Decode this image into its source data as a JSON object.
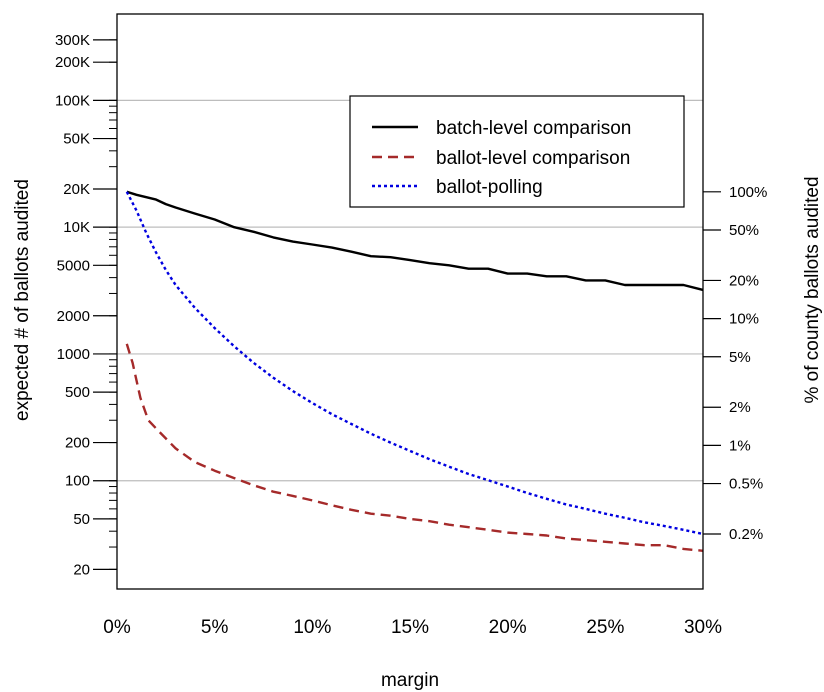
{
  "chart_data": {
    "type": "line",
    "xlabel": "margin",
    "ylabel": "expected # of ballots audited",
    "y2label": "% of county ballots audited",
    "x_scale": "linear",
    "y_scale": "log",
    "xlim": [
      0,
      30
    ],
    "ylim": [
      14,
      480000
    ],
    "grid": "horizontal at 100, 1000, 10K, 100K",
    "legend_position": "top-right",
    "x_ticks": [
      {
        "value": 0,
        "label": "0%"
      },
      {
        "value": 5,
        "label": "5%"
      },
      {
        "value": 10,
        "label": "10%"
      },
      {
        "value": 15,
        "label": "15%"
      },
      {
        "value": 20,
        "label": "20%"
      },
      {
        "value": 25,
        "label": "25%"
      },
      {
        "value": 30,
        "label": "30%"
      }
    ],
    "y_ticks": [
      {
        "value": 20,
        "label": "20"
      },
      {
        "value": 50,
        "label": "50"
      },
      {
        "value": 100,
        "label": "100"
      },
      {
        "value": 200,
        "label": "200"
      },
      {
        "value": 500,
        "label": "500"
      },
      {
        "value": 1000,
        "label": "1000"
      },
      {
        "value": 2000,
        "label": "2000"
      },
      {
        "value": 5000,
        "label": "5000"
      },
      {
        "value": 10000,
        "label": "10K"
      },
      {
        "value": 20000,
        "label": "20K"
      },
      {
        "value": 50000,
        "label": "50K"
      },
      {
        "value": 100000,
        "label": "100K"
      },
      {
        "value": 200000,
        "label": "200K"
      },
      {
        "value": 300000,
        "label": "300K"
      }
    ],
    "y_minor_ticks": [
      20,
      30,
      40,
      50,
      60,
      70,
      80,
      90,
      100,
      200,
      300,
      400,
      500,
      600,
      700,
      800,
      900,
      1000,
      2000,
      3000,
      4000,
      5000,
      6000,
      7000,
      8000,
      9000,
      10000,
      20000,
      30000,
      40000,
      50000,
      60000,
      70000,
      80000,
      90000,
      100000,
      200000,
      300000
    ],
    "y_grid": [
      100,
      1000,
      10000,
      100000
    ],
    "y2_ticks": [
      {
        "value": 19000,
        "label": "100%"
      },
      {
        "value": 9500,
        "label": "50%"
      },
      {
        "value": 3800,
        "label": "20%"
      },
      {
        "value": 1900,
        "label": "10%"
      },
      {
        "value": 950,
        "label": "5%"
      },
      {
        "value": 380,
        "label": "2%"
      },
      {
        "value": 190,
        "label": "1%"
      },
      {
        "value": 95,
        "label": "0.5%"
      },
      {
        "value": 38,
        "label": "0.2%"
      }
    ],
    "series": [
      {
        "name": "batch-level comparison",
        "color": "#000000",
        "dash": "solid",
        "x": [
          0.5,
          1,
          2,
          2.5,
          3,
          4,
          5,
          6,
          7,
          8,
          9,
          10,
          11,
          12,
          13,
          14,
          15,
          16,
          17,
          18,
          19,
          20,
          21,
          22,
          23,
          24,
          25,
          26,
          27,
          28,
          29,
          30
        ],
        "y": [
          19000,
          18000,
          16500,
          15200,
          14300,
          12800,
          11500,
          10000,
          9200,
          8300,
          7700,
          7300,
          6900,
          6400,
          5900,
          5800,
          5500,
          5200,
          5000,
          4700,
          4700,
          4300,
          4300,
          4100,
          4100,
          3800,
          3800,
          3500,
          3500,
          3500,
          3500,
          3200
        ]
      },
      {
        "name": "ballot-level comparison",
        "color": "#a52a2a",
        "dash": "dashed",
        "x": [
          0.5,
          0.8,
          1.2,
          1.6,
          2.2,
          3,
          4,
          5,
          6,
          7,
          8,
          9,
          10,
          11,
          12,
          13,
          14,
          15,
          16,
          17,
          18,
          19,
          20,
          21,
          22,
          23,
          24,
          25,
          26,
          27,
          28,
          29,
          30
        ],
        "y": [
          1200,
          850,
          450,
          300,
          240,
          180,
          140,
          120,
          105,
          92,
          82,
          76,
          70,
          64,
          59,
          55,
          53,
          50,
          48,
          45,
          43,
          41,
          39,
          38,
          37,
          35,
          34,
          33,
          32,
          31,
          31,
          29,
          28
        ]
      },
      {
        "name": "ballot-polling",
        "color": "#0000e0",
        "dash": "dotted",
        "x": [
          0.5,
          1,
          1.5,
          2,
          2.5,
          3,
          4,
          5,
          6,
          7,
          8,
          9,
          10,
          11,
          12,
          13,
          14,
          15,
          16,
          17,
          18,
          19,
          20,
          21,
          22,
          23,
          24,
          25,
          26,
          27,
          28,
          29,
          30
        ],
        "y": [
          19000,
          13500,
          9000,
          6300,
          4600,
          3500,
          2300,
          1600,
          1150,
          850,
          650,
          510,
          410,
          335,
          280,
          235,
          200,
          172,
          148,
          129,
          113,
          101,
          90,
          80,
          72,
          65,
          60,
          55,
          51,
          47,
          44,
          41,
          38
        ]
      }
    ]
  }
}
